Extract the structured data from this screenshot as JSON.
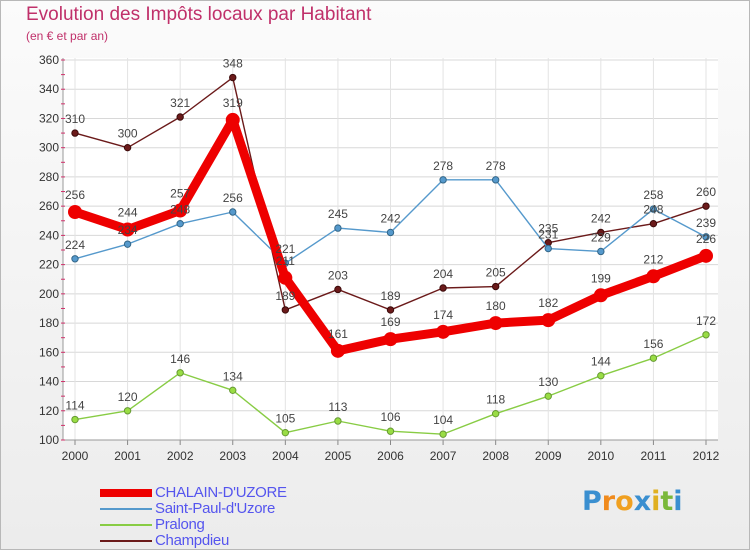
{
  "header": {
    "title": "Evolution des Impôts locaux par Habitant",
    "subtitle": "(en € et par an)"
  },
  "logo": {
    "text": "Proxiti"
  },
  "colors": {
    "CHALAIN-D'UZORE": "#ee0000",
    "Saint-Paul-d'Uzore": "#5599cc",
    "Pralong": "#88cc44",
    "Champdieu": "#6b1a1a",
    "axis_text": "#333333",
    "title": "#c0306a",
    "legend_text": "#5555ee"
  },
  "chart_data": {
    "type": "line",
    "title": "Evolution des Impôts locaux par Habitant",
    "subtitle": "(en € et par an)",
    "xlabel": "",
    "ylabel": "",
    "x": [
      "2000",
      "2001",
      "2002",
      "2003",
      "2004",
      "2005",
      "2006",
      "2007",
      "2008",
      "2009",
      "2010",
      "2011",
      "2012"
    ],
    "ylim": [
      100,
      360
    ],
    "yticks": [
      100,
      120,
      140,
      160,
      180,
      200,
      220,
      240,
      260,
      280,
      300,
      320,
      340,
      360
    ],
    "grid": true,
    "legend_position": "bottom-left",
    "series": [
      {
        "name": "CHALAIN-D'UZORE",
        "values": [
          256,
          244,
          257,
          319,
          211,
          161,
          169,
          174,
          180,
          182,
          199,
          212,
          226
        ]
      },
      {
        "name": "Saint-Paul-d'Uzore",
        "values": [
          224,
          234,
          248,
          256,
          221,
          245,
          242,
          278,
          278,
          231,
          229,
          258,
          239
        ]
      },
      {
        "name": "Pralong",
        "values": [
          114,
          120,
          146,
          134,
          105,
          113,
          106,
          104,
          118,
          130,
          144,
          156,
          172
        ]
      },
      {
        "name": "Champdieu",
        "values": [
          310,
          300,
          321,
          348,
          189,
          203,
          189,
          204,
          205,
          235,
          242,
          248,
          260
        ]
      }
    ]
  }
}
